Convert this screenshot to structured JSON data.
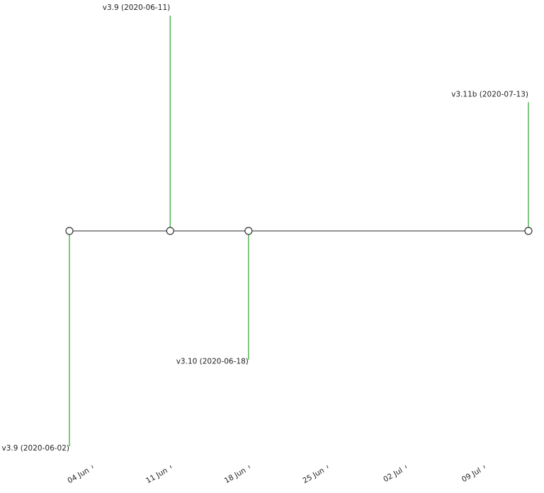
{
  "chart_data": {
    "type": "timeline",
    "events": [
      {
        "date": "2020-06-02",
        "label": "v3.9 (2020-06-02)",
        "level": -5
      },
      {
        "date": "2020-06-11",
        "label": "v3.9 (2020-06-11)",
        "level": 5
      },
      {
        "date": "2020-06-18",
        "label": "v3.10 (2020-06-18)",
        "level": -3
      },
      {
        "date": "2020-07-13",
        "label": "v3.11b (2020-07-13)",
        "level": 3
      }
    ],
    "x_ticks": [
      {
        "date": "2020-06-04",
        "label": "04 Jun"
      },
      {
        "date": "2020-06-11",
        "label": "11 Jun"
      },
      {
        "date": "2020-06-18",
        "label": "18 Jun"
      },
      {
        "date": "2020-06-25",
        "label": "25 Jun"
      },
      {
        "date": "2020-07-02",
        "label": "02 Jul"
      },
      {
        "date": "2020-07-09",
        "label": "09 Jul"
      }
    ],
    "xlim": [
      "2020-06-02",
      "2020-07-13"
    ],
    "ylim": [
      -5,
      5
    ],
    "stem_color": "#2ca02c",
    "baseline_color": "#555555",
    "grid": false,
    "y_axis_visible": false
  }
}
